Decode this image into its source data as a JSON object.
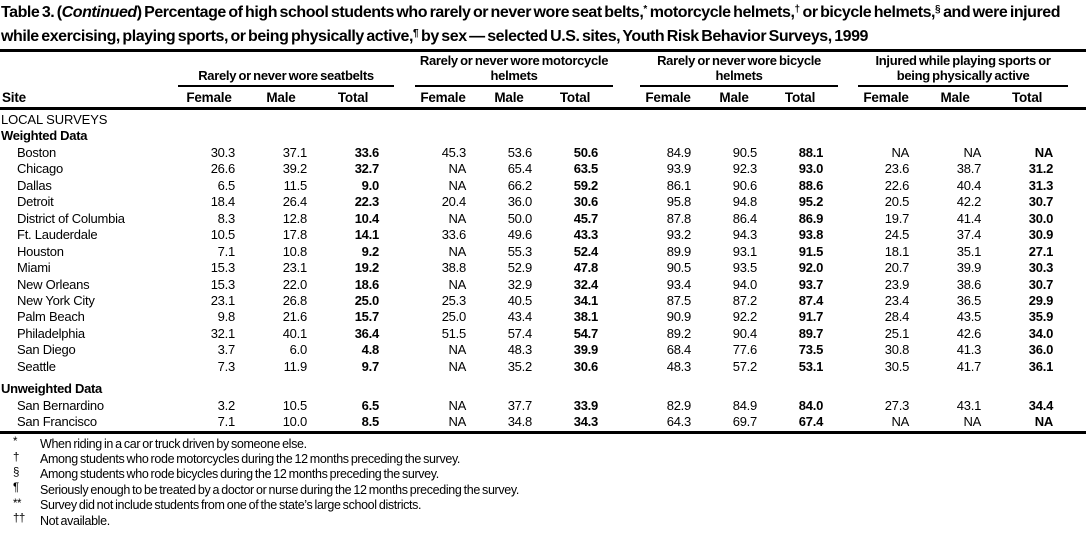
{
  "title": {
    "segments": [
      {
        "text": "Table 3. ("
      },
      {
        "text": "Continued",
        "italic": true
      },
      {
        "text": ") Percentage of high school students who rarely or never wore seat belts,"
      },
      {
        "text": "*",
        "sup": true
      },
      {
        "text": " motorcycle helmets,"
      },
      {
        "text": "†",
        "sup": true
      },
      {
        "text": " or bicycle helmets,"
      },
      {
        "text": "§",
        "sup": true
      },
      {
        "text": " and were injured while exercising, playing sports, or being physically active,"
      },
      {
        "text": "¶",
        "sup": true
      },
      {
        "text": " by sex — selected U.S. sites, Youth Risk Behavior Surveys, 1999"
      }
    ]
  },
  "table": {
    "site_header": "Site",
    "groups": [
      {
        "label": "Rarely or never wore seatbelts",
        "cols": [
          "Female",
          "Male",
          "Total"
        ]
      },
      {
        "label": "Rarely or never wore motorcycle helmets",
        "cols": [
          "Female",
          "Male",
          "Total"
        ]
      },
      {
        "label": "Rarely or never wore bicycle helmets",
        "cols": [
          "Female",
          "Male",
          "Total"
        ]
      },
      {
        "label": "Injured while playing sports or being physically active",
        "cols": [
          "Female",
          "Male",
          "Total"
        ]
      }
    ],
    "rows": [
      {
        "type": "section",
        "label": "LOCAL SURVEYS"
      },
      {
        "type": "subsection",
        "label": "Weighted Data"
      },
      {
        "type": "data",
        "label": "Boston",
        "values": [
          "30.3",
          "37.1",
          "33.6",
          "45.3",
          "53.6",
          "50.6",
          "84.9",
          "90.5",
          "88.1",
          "NA",
          "NA",
          "NA"
        ]
      },
      {
        "type": "data",
        "label": "Chicago",
        "values": [
          "26.6",
          "39.2",
          "32.7",
          "NA",
          "65.4",
          "63.5",
          "93.9",
          "92.3",
          "93.0",
          "23.6",
          "38.7",
          "31.2"
        ]
      },
      {
        "type": "data",
        "label": "Dallas",
        "values": [
          "6.5",
          "11.5",
          "9.0",
          "NA",
          "66.2",
          "59.2",
          "86.1",
          "90.6",
          "88.6",
          "22.6",
          "40.4",
          "31.3"
        ]
      },
      {
        "type": "data",
        "label": "Detroit",
        "values": [
          "18.4",
          "26.4",
          "22.3",
          "20.4",
          "36.0",
          "30.6",
          "95.8",
          "94.8",
          "95.2",
          "20.5",
          "42.2",
          "30.7"
        ]
      },
      {
        "type": "data",
        "label": "District of Columbia",
        "values": [
          "8.3",
          "12.8",
          "10.4",
          "NA",
          "50.0",
          "45.7",
          "87.8",
          "86.4",
          "86.9",
          "19.7",
          "41.4",
          "30.0"
        ]
      },
      {
        "type": "data",
        "label": "Ft. Lauderdale",
        "values": [
          "10.5",
          "17.8",
          "14.1",
          "33.6",
          "49.6",
          "43.3",
          "93.2",
          "94.3",
          "93.8",
          "24.5",
          "37.4",
          "30.9"
        ]
      },
      {
        "type": "data",
        "label": "Houston",
        "values": [
          "7.1",
          "10.8",
          "9.2",
          "NA",
          "55.3",
          "52.4",
          "89.9",
          "93.1",
          "91.5",
          "18.1",
          "35.1",
          "27.1"
        ]
      },
      {
        "type": "data",
        "label": "Miami",
        "values": [
          "15.3",
          "23.1",
          "19.2",
          "38.8",
          "52.9",
          "47.8",
          "90.5",
          "93.5",
          "92.0",
          "20.7",
          "39.9",
          "30.3"
        ]
      },
      {
        "type": "data",
        "label": "New Orleans",
        "values": [
          "15.3",
          "22.0",
          "18.6",
          "NA",
          "32.9",
          "32.4",
          "93.4",
          "94.0",
          "93.7",
          "23.9",
          "38.6",
          "30.7"
        ]
      },
      {
        "type": "data",
        "label": "New York City",
        "values": [
          "23.1",
          "26.8",
          "25.0",
          "25.3",
          "40.5",
          "34.1",
          "87.5",
          "87.2",
          "87.4",
          "23.4",
          "36.5",
          "29.9"
        ]
      },
      {
        "type": "data",
        "label": "Palm Beach",
        "values": [
          "9.8",
          "21.6",
          "15.7",
          "25.0",
          "43.4",
          "38.1",
          "90.9",
          "92.2",
          "91.7",
          "28.4",
          "43.5",
          "35.9"
        ]
      },
      {
        "type": "data",
        "label": "Philadelphia",
        "values": [
          "32.1",
          "40.1",
          "36.4",
          "51.5",
          "57.4",
          "54.7",
          "89.2",
          "90.4",
          "89.7",
          "25.1",
          "42.6",
          "34.0"
        ]
      },
      {
        "type": "data",
        "label": "San Diego",
        "values": [
          "3.7",
          "6.0",
          "4.8",
          "NA",
          "48.3",
          "39.9",
          "68.4",
          "77.6",
          "73.5",
          "30.8",
          "41.3",
          "36.0"
        ]
      },
      {
        "type": "data",
        "label": "Seattle",
        "values": [
          "7.3",
          "11.9",
          "9.7",
          "NA",
          "35.2",
          "30.6",
          "48.3",
          "57.2",
          "53.1",
          "30.5",
          "41.7",
          "36.1"
        ]
      },
      {
        "type": "subsection",
        "label": "Unweighted Data",
        "gap_above": true
      },
      {
        "type": "data",
        "label": "San Bernardino",
        "values": [
          "3.2",
          "10.5",
          "6.5",
          "NA",
          "37.7",
          "33.9",
          "82.9",
          "84.9",
          "84.0",
          "27.3",
          "43.1",
          "34.4"
        ]
      },
      {
        "type": "data",
        "label": "San Francisco",
        "values": [
          "7.1",
          "10.0",
          "8.5",
          "NA",
          "34.8",
          "34.3",
          "64.3",
          "69.7",
          "67.4",
          "NA",
          "NA",
          "NA"
        ]
      }
    ]
  },
  "footnotes": [
    {
      "symbol": "*",
      "text": "When riding in a car or truck driven by someone else."
    },
    {
      "symbol": "†",
      "text": "Among students who rode motorcycles during the 12 months preceding the survey."
    },
    {
      "symbol": "§",
      "text": "Among students who rode bicycles during the 12 months preceding the survey."
    },
    {
      "symbol": "¶",
      "text": "Seriously enough to be treated by a doctor or nurse during the 12 months preceding the survey."
    },
    {
      "symbol": "**",
      "text": "Survey did not include students from one of the state’s large school districts."
    },
    {
      "symbol": "††",
      "text": "Not available."
    }
  ],
  "colors": {
    "background": "#ffffff",
    "text": "#000000",
    "rule": "#000000"
  }
}
